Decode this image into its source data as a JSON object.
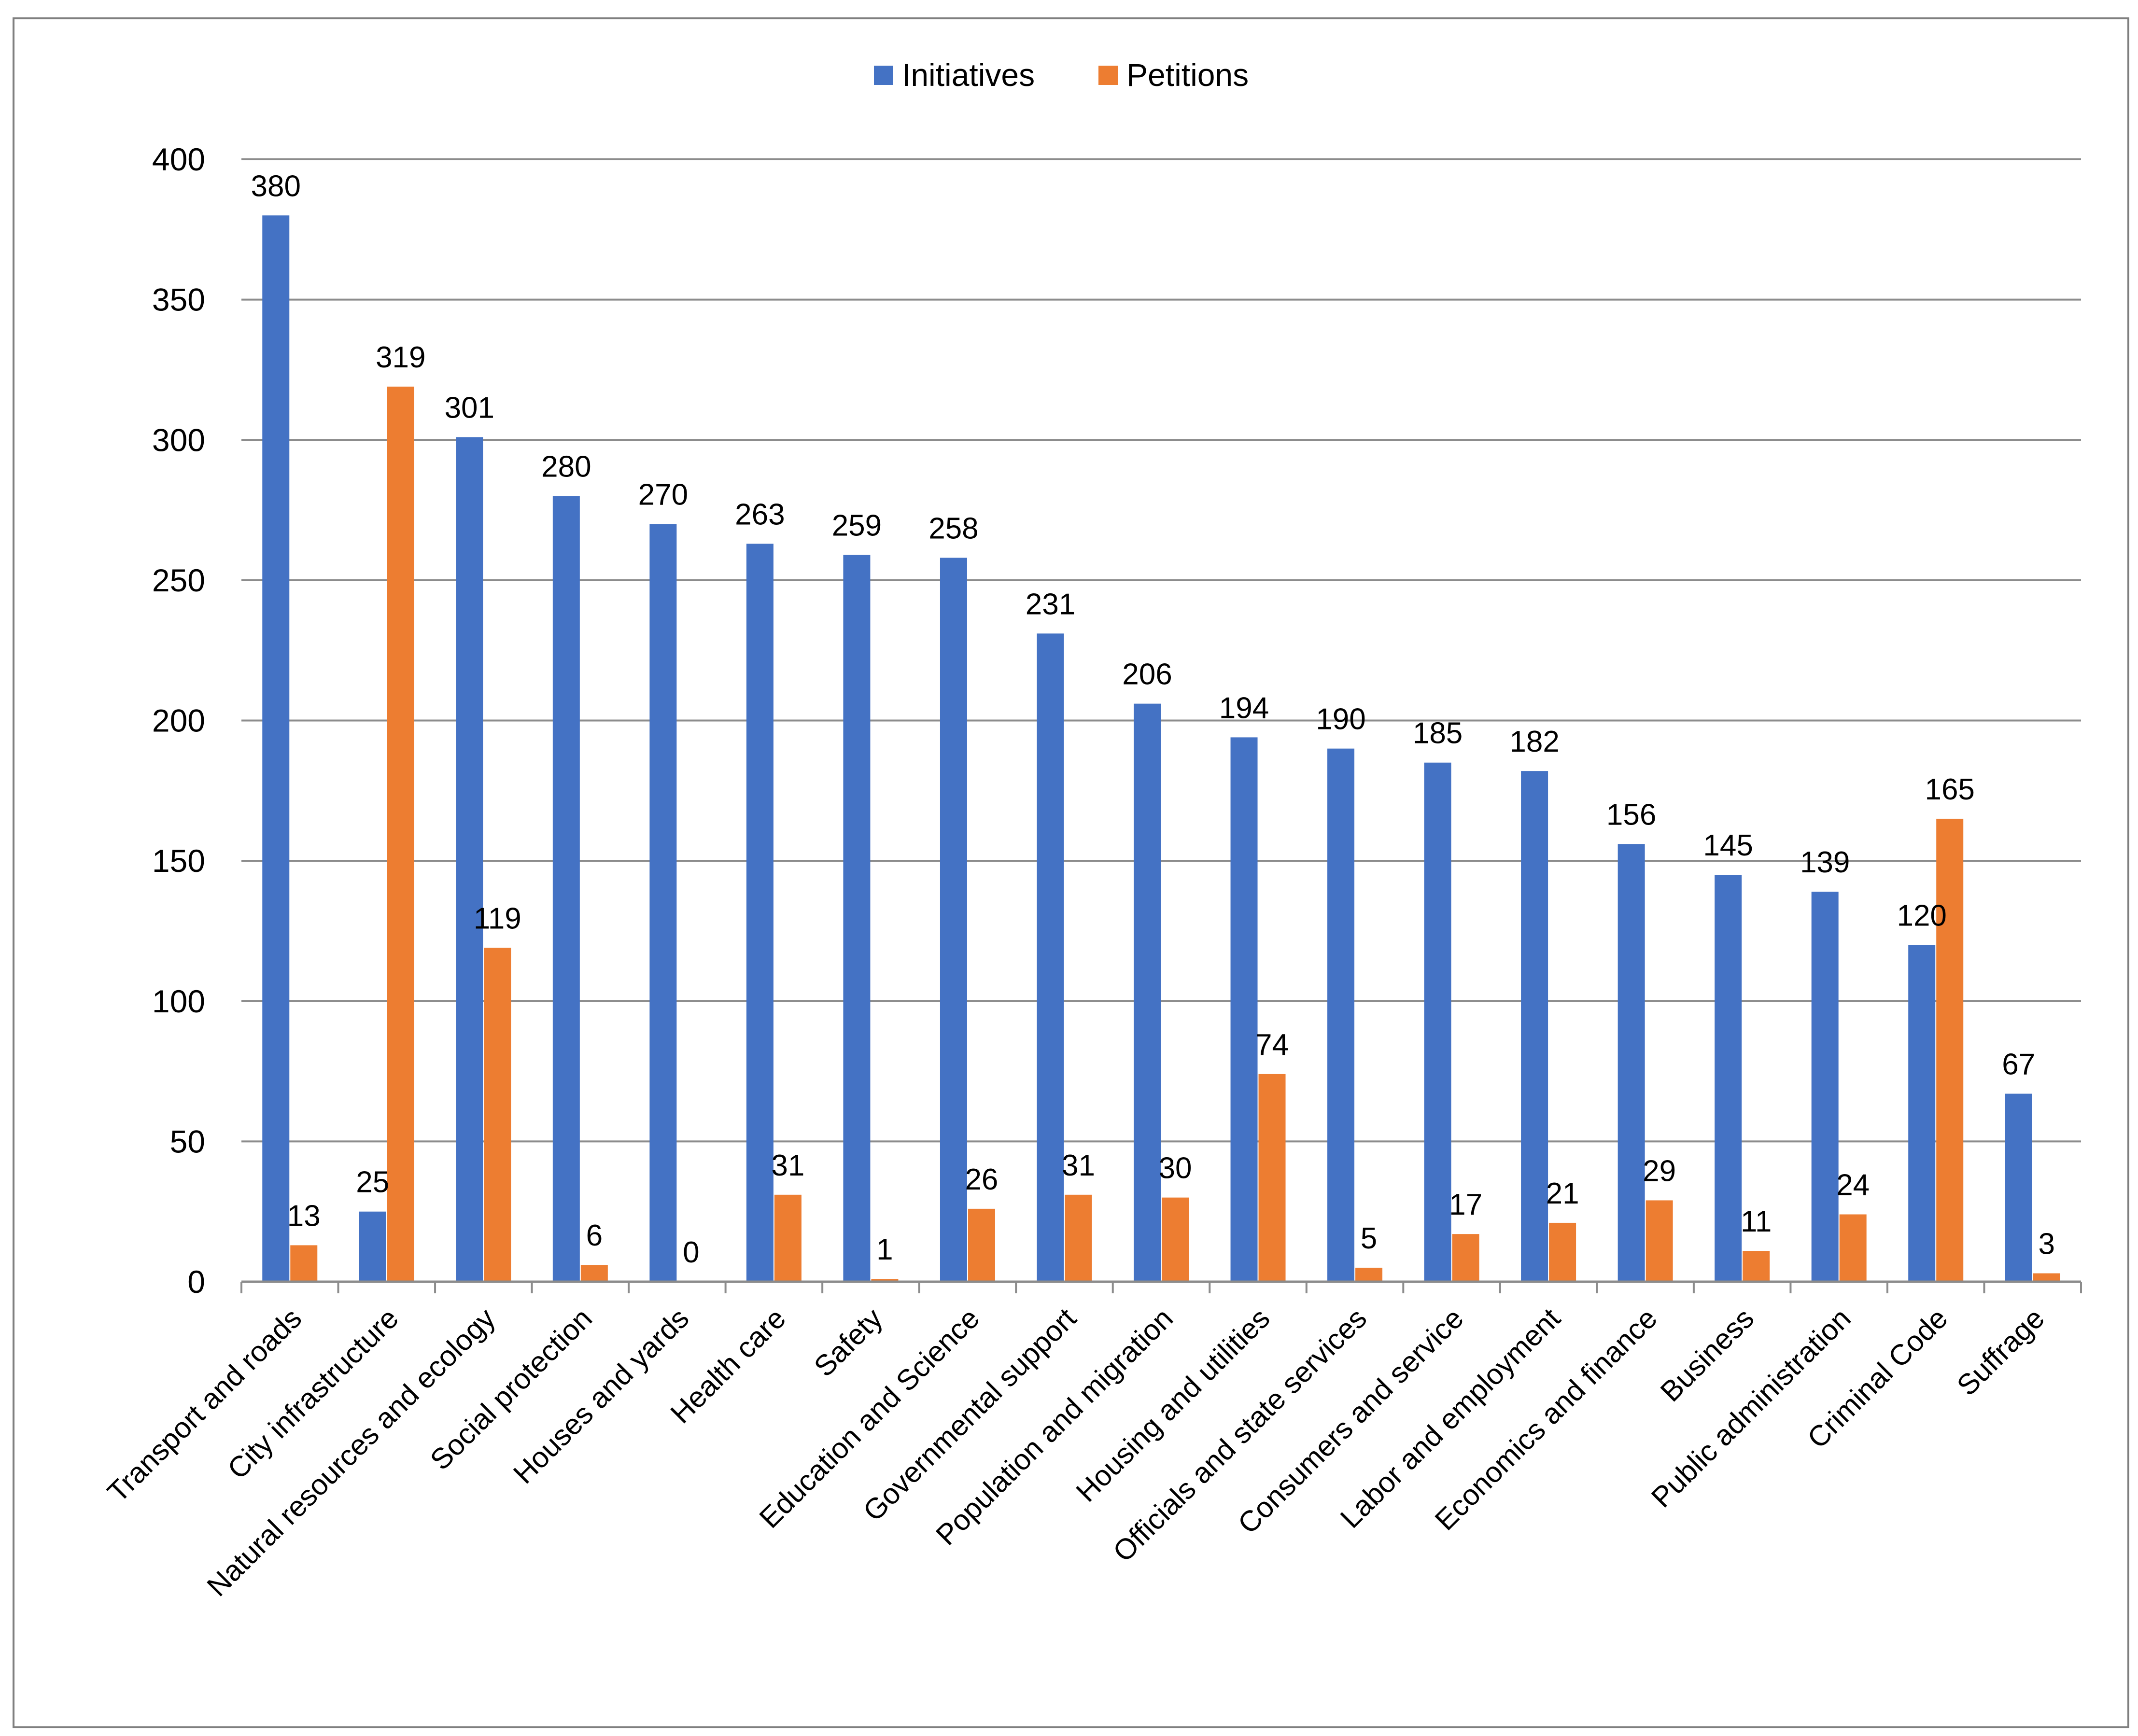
{
  "chart_data": {
    "type": "bar",
    "title": "",
    "xlabel": "",
    "ylabel": "",
    "ylim": [
      0,
      400
    ],
    "yticks": [
      "0",
      "50",
      "100",
      "150",
      "200",
      "250",
      "300",
      "350",
      "400"
    ],
    "grid": true,
    "legend_position": "top-center",
    "categories": [
      "Transport and roads",
      "City infrastructure",
      "Natural resources and ecology",
      "Social protection",
      "Houses and yards",
      "Health care",
      "Safety",
      "Education and Science",
      "Governmental support",
      "Population and migration",
      "Housing and utilities",
      "Officials and state services",
      "Consumers and service",
      "Labor and employment",
      "Economics and finance",
      "Business",
      "Public administration",
      "Criminal Code",
      "Suffrage"
    ],
    "series": [
      {
        "name": "Initiatives",
        "color": "#4472C4",
        "values": [
          380,
          25,
          301,
          280,
          270,
          263,
          259,
          258,
          231,
          206,
          194,
          190,
          185,
          182,
          156,
          145,
          139,
          120,
          67
        ]
      },
      {
        "name": "Petitions",
        "color": "#ED7D31",
        "values": [
          13,
          319,
          119,
          6,
          0,
          31,
          1,
          26,
          31,
          30,
          74,
          5,
          17,
          21,
          29,
          11,
          24,
          165,
          3
        ]
      }
    ]
  }
}
